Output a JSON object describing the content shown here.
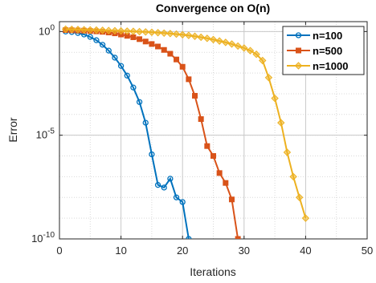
{
  "chart_data": {
    "type": "line",
    "title": "Convergence on O(n)",
    "xlabel": "Iterations",
    "ylabel": "Error",
    "xlim": [
      0,
      50
    ],
    "ylim": [
      1e-10,
      3
    ],
    "yscale": "log",
    "grid": true,
    "minor_grid": true,
    "legend_position": "top-right",
    "x_ticks": [
      "0",
      "10",
      "20",
      "30",
      "40",
      "50"
    ],
    "y_ticks": [
      {
        "base": "10",
        "exp": "0"
      },
      {
        "base": "10",
        "exp": "-5"
      },
      {
        "base": "10",
        "exp": "-10"
      }
    ],
    "series": [
      {
        "name": "n=100",
        "color": "#0072BD",
        "marker": "circle",
        "x": [
          1,
          2,
          3,
          4,
          5,
          6,
          7,
          8,
          9,
          10,
          11,
          12,
          13,
          14,
          15,
          16,
          17,
          18,
          19,
          20,
          21
        ],
        "y": [
          1.0,
          0.95,
          0.85,
          0.72,
          0.55,
          0.38,
          0.23,
          0.12,
          0.055,
          0.022,
          0.0075,
          0.002,
          0.0004,
          4e-05,
          1.2e-06,
          4e-08,
          3e-08,
          8e-08,
          1e-08,
          6e-09,
          1e-10
        ]
      },
      {
        "name": "n=500",
        "color": "#D95319",
        "marker": "square",
        "x": [
          1,
          2,
          3,
          4,
          5,
          6,
          7,
          8,
          9,
          10,
          11,
          12,
          13,
          14,
          15,
          16,
          17,
          18,
          19,
          20,
          21,
          22,
          23,
          24,
          25,
          26,
          27,
          28,
          29
        ],
        "y": [
          1.18,
          1.15,
          1.12,
          1.1,
          1.06,
          1.02,
          0.97,
          0.9,
          0.82,
          0.72,
          0.62,
          0.53,
          0.43,
          0.33,
          0.25,
          0.19,
          0.13,
          0.085,
          0.045,
          0.02,
          0.005,
          0.0008,
          6e-05,
          3e-06,
          1e-06,
          1.5e-07,
          5e-08,
          8e-09,
          1e-10
        ]
      },
      {
        "name": "n=1000",
        "color": "#EDB120",
        "marker": "diamond",
        "x": [
          1,
          2,
          3,
          4,
          5,
          6,
          7,
          8,
          9,
          10,
          11,
          12,
          13,
          14,
          15,
          16,
          17,
          18,
          19,
          20,
          21,
          22,
          23,
          24,
          25,
          26,
          27,
          28,
          29,
          30,
          31,
          32,
          33,
          34,
          35,
          36,
          37,
          38,
          39,
          40
        ],
        "y": [
          1.3,
          1.28,
          1.25,
          1.22,
          1.2,
          1.18,
          1.15,
          1.12,
          1.1,
          1.07,
          1.05,
          1.02,
          0.99,
          0.96,
          0.92,
          0.88,
          0.84,
          0.8,
          0.75,
          0.7,
          0.65,
          0.59,
          0.53,
          0.47,
          0.41,
          0.35,
          0.3,
          0.25,
          0.2,
          0.16,
          0.12,
          0.08,
          0.04,
          0.006,
          0.0006,
          4e-05,
          1.5e-06,
          1e-07,
          1e-08,
          1e-09
        ]
      }
    ]
  }
}
